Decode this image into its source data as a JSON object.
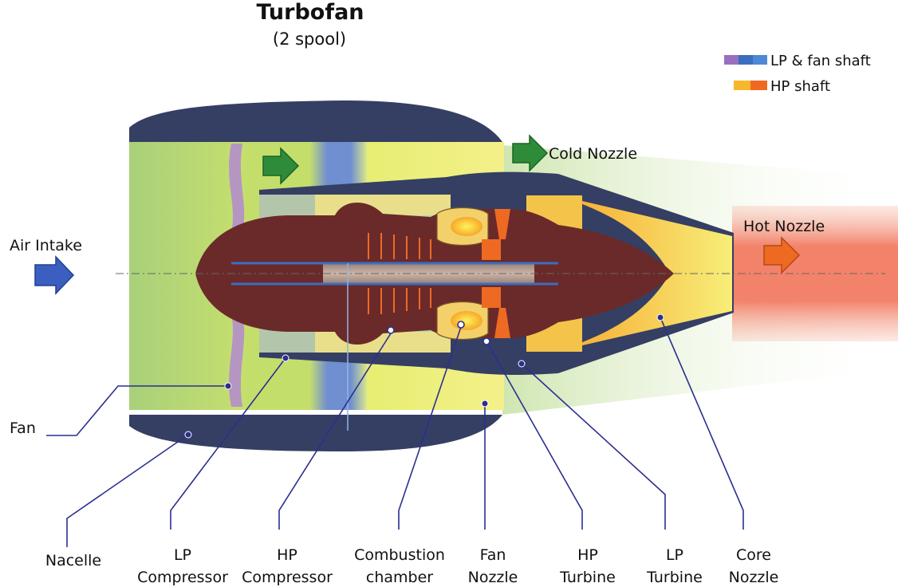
{
  "title": "Turbofan",
  "subtitle": "(2 spool)",
  "legend": [
    {
      "label": "LP & fan shaft",
      "colors": [
        "#9b6fc0",
        "#3a6fbf",
        "#4f88d6"
      ]
    },
    {
      "label": "HP shaft",
      "colors": [
        "#f6b72c",
        "#ee6a22"
      ]
    }
  ],
  "flow_labels": {
    "air_intake": "Air Intake",
    "cold_nozzle": "Cold Nozzle",
    "hot_nozzle": "Hot Nozzle"
  },
  "components": [
    {
      "id": "fan",
      "lines": [
        "Fan"
      ]
    },
    {
      "id": "nacelle",
      "lines": [
        "Nacelle"
      ]
    },
    {
      "id": "lp-compressor",
      "lines": [
        "LP",
        "Compressor"
      ]
    },
    {
      "id": "hp-compressor",
      "lines": [
        "HP",
        "Compressor"
      ]
    },
    {
      "id": "combustion-chamber",
      "lines": [
        "Combustion",
        "chamber"
      ]
    },
    {
      "id": "fan-nozzle",
      "lines": [
        "Fan",
        "Nozzle"
      ]
    },
    {
      "id": "hp-turbine",
      "lines": [
        "HP",
        "Turbine"
      ]
    },
    {
      "id": "lp-turbine",
      "lines": [
        "LP",
        "Turbine"
      ]
    },
    {
      "id": "core-nozzle",
      "lines": [
        "Core",
        "Nozzle"
      ]
    }
  ],
  "colors": {
    "nacelle": "#353f63",
    "core": "#6b2a2a",
    "bypass_green": "#b9d86a",
    "bypass_yellow": "#eef07a",
    "hot_exhaust": "#f2866d",
    "cold_exhaust": "#d8ecc0",
    "arrow_blue": "#3b5fc0",
    "arrow_green": "#2e8b3a",
    "arrow_orange": "#ee6a22",
    "leader": "#2b2f8f"
  }
}
